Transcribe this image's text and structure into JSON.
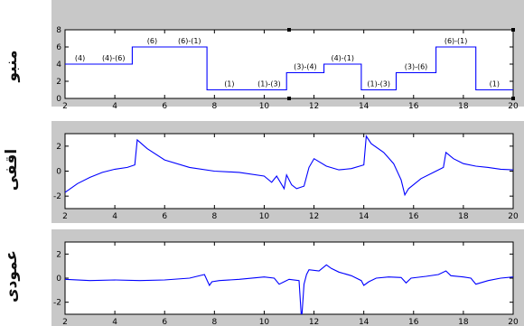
{
  "chart_data": [
    {
      "type": "line",
      "ylabel": "منبو",
      "xlim": [
        2,
        20
      ],
      "ylim": [
        0,
        8
      ],
      "xticks": [
        2,
        4,
        6,
        8,
        10,
        12,
        14,
        16,
        18,
        20
      ],
      "yticks": [
        0,
        2,
        4,
        6,
        8
      ],
      "line_color": "#0000ff",
      "steps": [
        {
          "x0": 2.0,
          "x1": 3.2,
          "y": 4,
          "label": "(4)"
        },
        {
          "x0": 3.2,
          "x1": 4.7,
          "y": 4,
          "label": "(4)-(6)"
        },
        {
          "x0": 4.7,
          "x1": 6.3,
          "y": 6,
          "label": "(6)"
        },
        {
          "x0": 6.3,
          "x1": 7.7,
          "y": 6,
          "label": "(6)-(1)"
        },
        {
          "x0": 7.7,
          "x1": 9.5,
          "y": 1,
          "label": "(1)"
        },
        {
          "x0": 9.5,
          "x1": 10.9,
          "y": 1,
          "label": "(1)-(3)"
        },
        {
          "x0": 10.9,
          "x1": 12.4,
          "y": 3,
          "label": "(3)-(4)"
        },
        {
          "x0": 12.4,
          "x1": 13.9,
          "y": 4,
          "label": "(4)-(1)"
        },
        {
          "x0": 13.9,
          "x1": 15.3,
          "y": 1,
          "label": "(1)-(3)"
        },
        {
          "x0": 15.3,
          "x1": 16.9,
          "y": 3,
          "label": "(3)-(6)"
        },
        {
          "x0": 16.9,
          "x1": 18.5,
          "y": 6,
          "label": "(6)-(1)"
        },
        {
          "x0": 18.5,
          "x1": 20.0,
          "y": 1,
          "label": "(1)"
        }
      ]
    },
    {
      "type": "line",
      "ylabel": "اقفی",
      "xlim": [
        2,
        20
      ],
      "ylim": [
        -3,
        3
      ],
      "xticks": [
        2,
        4,
        6,
        8,
        10,
        12,
        14,
        16,
        18,
        20
      ],
      "yticks": [
        -2,
        0,
        2
      ],
      "line_color": "#0000ff",
      "x": [
        2.0,
        2.5,
        3.0,
        3.5,
        4.0,
        4.5,
        4.8,
        4.9,
        5.3,
        6.0,
        7.0,
        8.0,
        9.0,
        10.0,
        10.3,
        10.5,
        10.8,
        10.9,
        11.1,
        11.3,
        11.6,
        11.8,
        12.0,
        12.5,
        13.0,
        13.5,
        14.0,
        14.1,
        14.3,
        14.8,
        15.2,
        15.5,
        15.65,
        15.8,
        16.3,
        16.8,
        17.2,
        17.3,
        17.6,
        18.0,
        18.5,
        19.0,
        19.5,
        20.0
      ],
      "y": [
        -1.7,
        -1.0,
        -0.5,
        -0.1,
        0.15,
        0.3,
        0.5,
        2.5,
        1.8,
        0.9,
        0.3,
        0.0,
        -0.1,
        -0.4,
        -0.9,
        -0.4,
        -1.4,
        -0.3,
        -1.1,
        -1.4,
        -1.2,
        0.3,
        1.0,
        0.4,
        0.1,
        0.2,
        0.5,
        2.8,
        2.2,
        1.5,
        0.6,
        -0.7,
        -1.9,
        -1.4,
        -0.6,
        -0.1,
        0.3,
        1.5,
        1.0,
        0.6,
        0.4,
        0.3,
        0.15,
        0.1
      ]
    },
    {
      "type": "line",
      "ylabel": "عمودی",
      "xlim": [
        2,
        20
      ],
      "ylim": [
        -3,
        3
      ],
      "xticks": [
        2,
        4,
        6,
        8,
        10,
        12,
        14,
        16,
        18,
        20
      ],
      "yticks": [
        -2,
        0,
        2
      ],
      "line_color": "#0000ff",
      "x": [
        2.0,
        3.0,
        4.0,
        5.0,
        6.0,
        7.0,
        7.6,
        7.8,
        7.9,
        8.2,
        9.0,
        10.0,
        10.4,
        10.6,
        10.8,
        11.0,
        11.4,
        11.5,
        11.6,
        11.7,
        11.8,
        12.2,
        12.5,
        12.7,
        13.0,
        13.5,
        13.9,
        14.0,
        14.2,
        14.5,
        15.0,
        15.5,
        15.7,
        15.9,
        16.5,
        17.0,
        17.3,
        17.5,
        18.0,
        18.3,
        18.5,
        19.0,
        19.5,
        20.0
      ],
      "y": [
        -0.1,
        -0.2,
        -0.15,
        -0.2,
        -0.15,
        0.0,
        0.3,
        -0.6,
        -0.3,
        -0.2,
        -0.1,
        0.1,
        0.0,
        -0.5,
        -0.3,
        -0.1,
        -0.2,
        -3.5,
        -0.5,
        0.3,
        0.7,
        0.6,
        1.1,
        0.8,
        0.5,
        0.2,
        -0.2,
        -0.6,
        -0.3,
        0.0,
        0.1,
        0.05,
        -0.4,
        0.0,
        0.15,
        0.3,
        0.6,
        0.2,
        0.1,
        0.0,
        -0.5,
        -0.2,
        0.0,
        0.1
      ]
    }
  ]
}
